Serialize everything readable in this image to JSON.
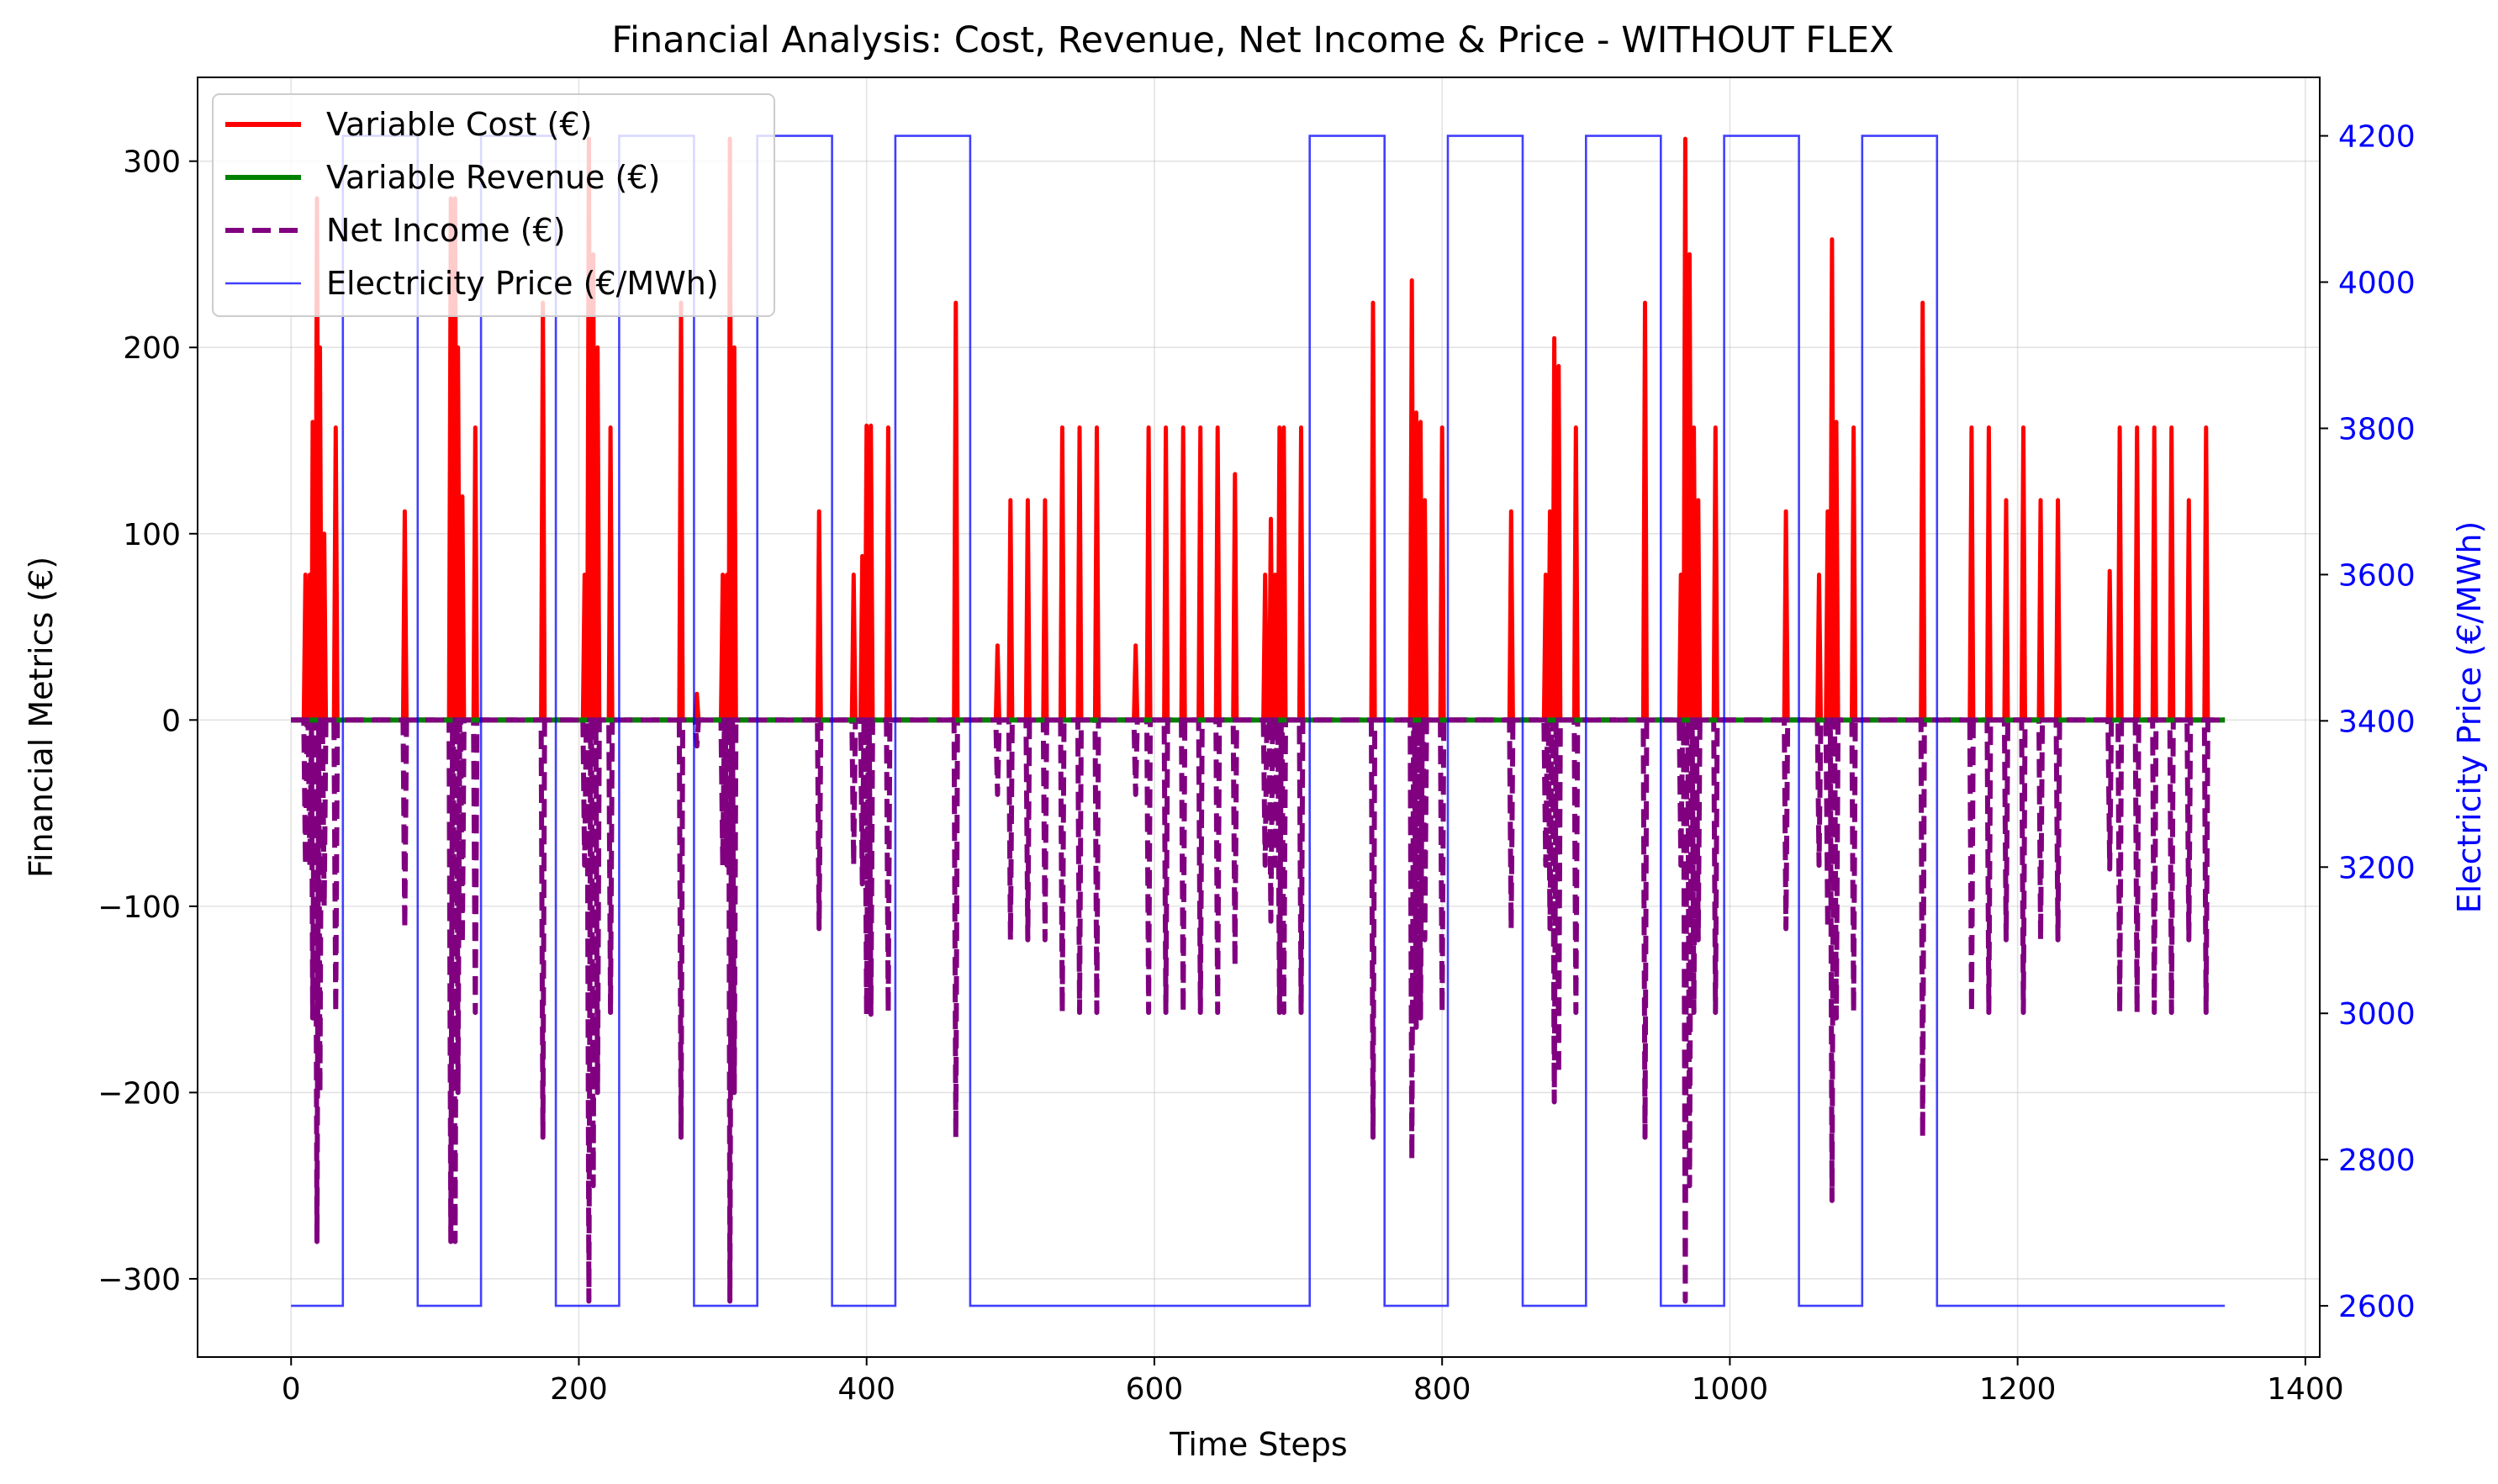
{
  "chart_data": {
    "type": "line",
    "title": "Financial Analysis: Cost, Revenue, Net Income & Price - WITHOUT FLEX",
    "xlabel": "Time Steps",
    "ylabel": "Financial Metrics (€)",
    "y2label": "Electricity Price (€/MWh)",
    "xlim": [
      -65,
      1410
    ],
    "ylim": [
      -342,
      345
    ],
    "y2lim": [
      2530,
      4280
    ],
    "x_ticks": [
      0,
      200,
      400,
      600,
      800,
      1000,
      1200,
      1400
    ],
    "y_ticks": [
      300,
      200,
      100,
      0,
      -100,
      -200,
      -300
    ],
    "y2_ticks": [
      4200,
      4000,
      3800,
      3600,
      3400,
      3200,
      3000,
      2800,
      2600
    ],
    "y_tick_labels": [
      "300",
      "200",
      "100",
      "0",
      "−100",
      "−200",
      "−300"
    ],
    "y2_tick_labels": [
      "4200",
      "4000",
      "3800",
      "3600",
      "3400",
      "3200",
      "3000",
      "2800",
      "2600"
    ],
    "grid": true,
    "legend_position": "top-left",
    "colors": {
      "cost": "#ff0000",
      "revenue": "#008000",
      "net": "#800080",
      "price": "#0000ff"
    },
    "series": [
      {
        "name": "Variable Cost (€)",
        "key": "cost"
      },
      {
        "name": "Variable Revenue (€)",
        "key": "revenue"
      },
      {
        "name": "Net Income (€)",
        "key": "net"
      },
      {
        "name": "Electricity Price (€/MWh)",
        "key": "price"
      }
    ],
    "x_range": [
      0,
      1344
    ],
    "revenue_value": 0,
    "cost_peaks": [
      [
        10,
        78
      ],
      [
        13,
        78
      ],
      [
        15,
        160
      ],
      [
        18,
        280
      ],
      [
        20,
        200
      ],
      [
        23,
        100
      ],
      [
        31,
        157
      ],
      [
        79,
        112
      ],
      [
        111,
        280
      ],
      [
        114,
        280
      ],
      [
        116,
        200
      ],
      [
        119,
        120
      ],
      [
        128,
        157
      ],
      [
        175,
        224
      ],
      [
        204,
        78
      ],
      [
        207,
        312
      ],
      [
        210,
        250
      ],
      [
        213,
        200
      ],
      [
        222,
        157
      ],
      [
        271,
        224
      ],
      [
        282,
        14
      ],
      [
        300,
        78
      ],
      [
        303,
        78
      ],
      [
        305,
        312
      ],
      [
        308,
        200
      ],
      [
        367,
        112
      ],
      [
        391,
        78
      ],
      [
        397,
        88
      ],
      [
        400,
        158
      ],
      [
        403,
        158
      ],
      [
        415,
        157
      ],
      [
        462,
        224
      ],
      [
        491,
        40
      ],
      [
        500,
        118
      ],
      [
        512,
        118
      ],
      [
        524,
        118
      ],
      [
        536,
        157
      ],
      [
        548,
        157
      ],
      [
        560,
        157
      ],
      [
        587,
        40
      ],
      [
        596,
        157
      ],
      [
        608,
        157
      ],
      [
        620,
        157
      ],
      [
        632,
        157
      ],
      [
        644,
        157
      ],
      [
        656,
        132
      ],
      [
        677,
        78
      ],
      [
        681,
        108
      ],
      [
        684,
        78
      ],
      [
        687,
        157
      ],
      [
        690,
        157
      ],
      [
        702,
        157
      ],
      [
        752,
        224
      ],
      [
        779,
        236
      ],
      [
        782,
        165
      ],
      [
        785,
        160
      ],
      [
        788,
        118
      ],
      [
        800,
        157
      ],
      [
        848,
        112
      ],
      [
        872,
        78
      ],
      [
        875,
        112
      ],
      [
        878,
        205
      ],
      [
        881,
        190
      ],
      [
        893,
        157
      ],
      [
        941,
        224
      ],
      [
        966,
        78
      ],
      [
        969,
        312
      ],
      [
        972,
        250
      ],
      [
        975,
        157
      ],
      [
        978,
        118
      ],
      [
        990,
        157
      ],
      [
        1039,
        112
      ],
      [
        1062,
        78
      ],
      [
        1068,
        112
      ],
      [
        1071,
        258
      ],
      [
        1074,
        160
      ],
      [
        1086,
        157
      ],
      [
        1134,
        224
      ],
      [
        1168,
        157
      ],
      [
        1180,
        157
      ],
      [
        1192,
        118
      ],
      [
        1204,
        157
      ],
      [
        1216,
        118
      ],
      [
        1228,
        118
      ],
      [
        1264,
        80
      ],
      [
        1271,
        157
      ],
      [
        1283,
        157
      ],
      [
        1295,
        157
      ],
      [
        1307,
        157
      ],
      [
        1319,
        118
      ],
      [
        1331,
        157
      ]
    ],
    "price_steps": [
      [
        0,
        2600
      ],
      [
        36,
        4200
      ],
      [
        88,
        2600
      ],
      [
        132,
        4200
      ],
      [
        184,
        2600
      ],
      [
        228,
        4200
      ],
      [
        280,
        2600
      ],
      [
        324,
        4200
      ],
      [
        376,
        2600
      ],
      [
        420,
        4200
      ],
      [
        472,
        2600
      ],
      [
        708,
        4200
      ],
      [
        760,
        2600
      ],
      [
        804,
        4200
      ],
      [
        856,
        2600
      ],
      [
        900,
        4200
      ],
      [
        952,
        2600
      ],
      [
        996,
        4200
      ],
      [
        1048,
        2600
      ],
      [
        1092,
        4200
      ],
      [
        1144,
        2600
      ],
      [
        1344,
        2600
      ]
    ]
  }
}
